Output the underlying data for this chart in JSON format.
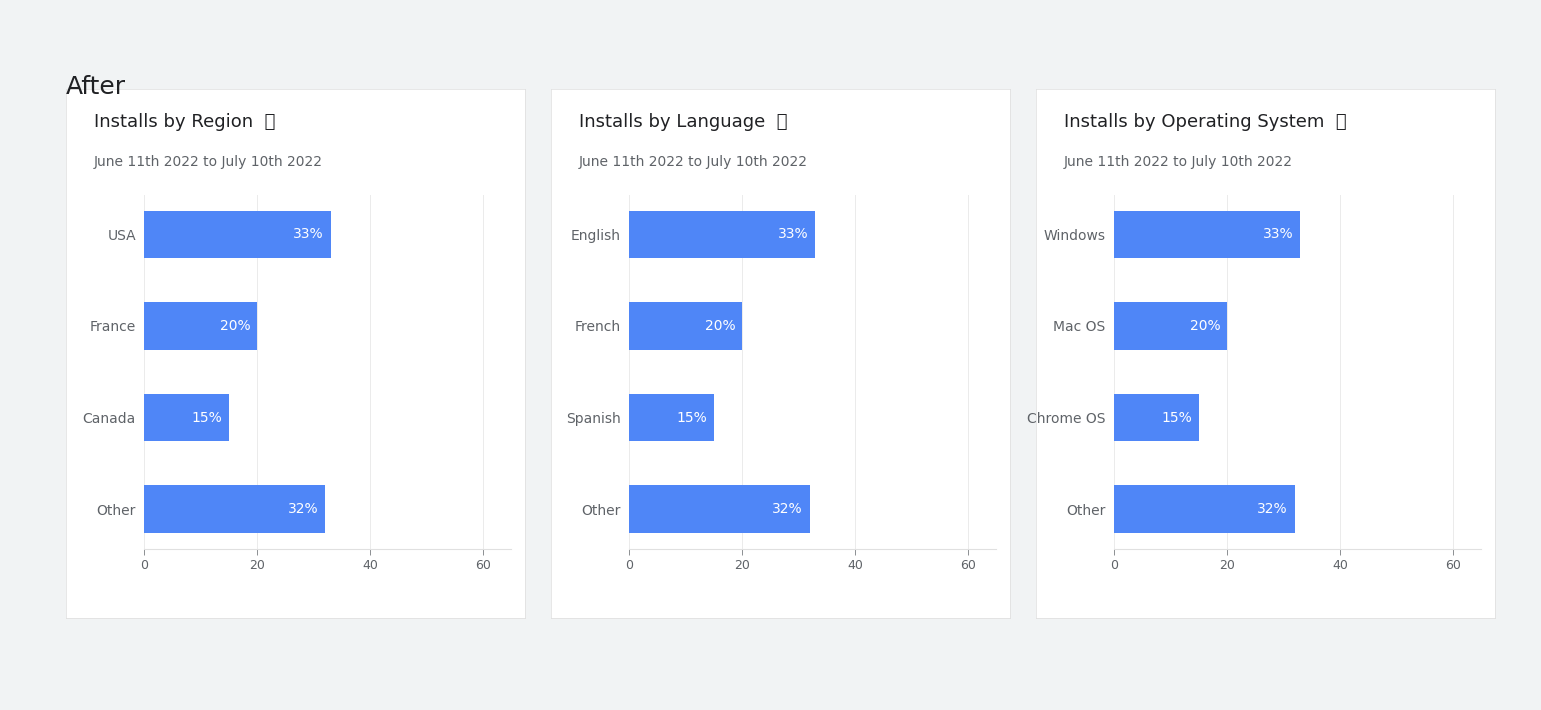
{
  "page_title": "After",
  "page_bg": "#f1f3f4",
  "card_bg": "#ffffff",
  "subtitle": "June 11th 2022 to July 10th 2022",
  "charts": [
    {
      "title": "Installs by Region",
      "categories": [
        "USA",
        "France",
        "Canada",
        "Other"
      ],
      "values": [
        33,
        20,
        15,
        32
      ]
    },
    {
      "title": "Installs by Language",
      "categories": [
        "English",
        "French",
        "Spanish",
        "Other"
      ],
      "values": [
        33,
        20,
        15,
        32
      ]
    },
    {
      "title": "Installs by Operating System",
      "categories": [
        "Windows",
        "Mac OS",
        "Chrome OS",
        "Other"
      ],
      "values": [
        33,
        20,
        15,
        32
      ]
    }
  ],
  "bar_color": "#4f86f7",
  "bar_label_color": "#ffffff",
  "title_color": "#202124",
  "subtitle_color": "#5f6368",
  "category_color": "#5f6368",
  "xtick_color": "#5f6368",
  "xlim": [
    0,
    65
  ],
  "xticks": [
    0,
    20,
    40,
    60
  ],
  "title_fontsize": 13,
  "subtitle_fontsize": 10,
  "bar_label_fontsize": 10,
  "category_fontsize": 10,
  "xtick_fontsize": 9,
  "page_title_fontsize": 18,
  "card_shadow_color": "#cccccc"
}
